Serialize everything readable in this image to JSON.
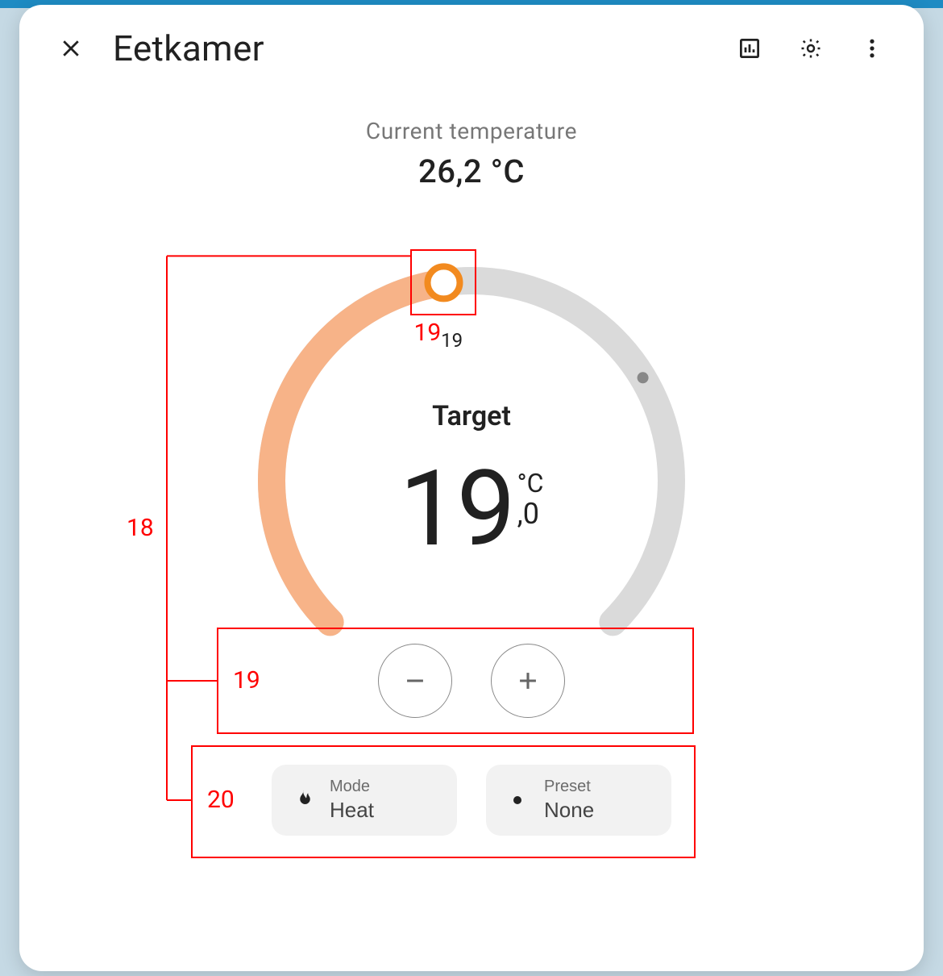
{
  "header": {
    "title": "Eetkamer"
  },
  "current_temp": {
    "label": "Current temperature",
    "value": "26,2 °C"
  },
  "dial": {
    "track_color": "#dadada",
    "active_color": "#f7b388",
    "accent_color": "#f28a1f",
    "background": "#ffffff",
    "stroke_width": 34,
    "radius": 248,
    "start_angle_deg": 135,
    "end_angle_deg": 405,
    "value_angle_deg": 262,
    "indicator_angle_deg": 329,
    "indicator_color": "#888888",
    "tick_label": "19",
    "target_label": "Target",
    "target_int": "19",
    "target_unit": "°C",
    "target_decimal": ",0"
  },
  "controls": {
    "mode": {
      "label": "Mode",
      "value": "Heat"
    },
    "preset": {
      "label": "Preset",
      "value": "None"
    }
  },
  "annotations": {
    "spine_label": "18",
    "handle_label": "19",
    "pm_label": "19",
    "chips_label": "20"
  }
}
